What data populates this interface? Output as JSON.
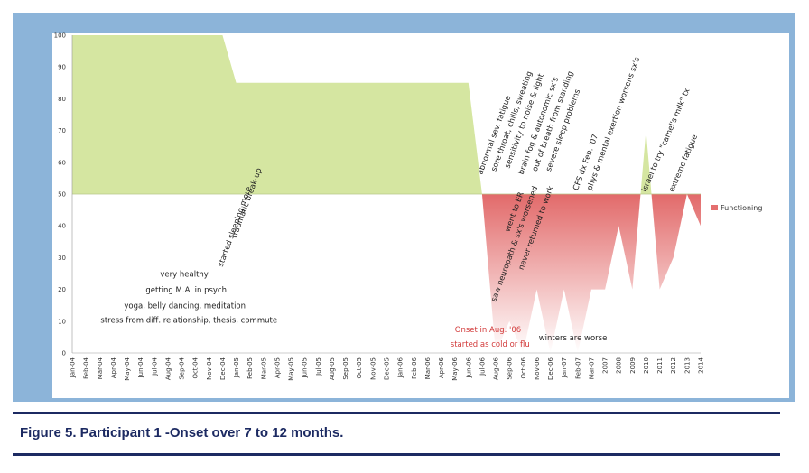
{
  "caption": "Figure 5. Participant 1 -Onset over 7 to 12 months.",
  "colors": {
    "frame": "#8cb4d9",
    "above": "#d5e6a1",
    "below": "#e46f6f",
    "caption": "#1c2a62"
  },
  "chart_data": {
    "type": "area",
    "title": "",
    "xlabel": "",
    "ylabel": "",
    "ylim": [
      0,
      100
    ],
    "baseline": 50,
    "y_ticks": [
      0,
      10,
      20,
      30,
      40,
      50,
      60,
      70,
      80,
      90,
      100
    ],
    "grid": false,
    "legend": {
      "position": "right",
      "entries": [
        "Functioning"
      ]
    },
    "categories": [
      "Jan-04",
      "Feb-04",
      "Mar-04",
      "Apr-04",
      "May-04",
      "Jun-04",
      "Jul-04",
      "Aug-04",
      "Sep-04",
      "Oct-04",
      "Nov-04",
      "Dec-04",
      "Jan-05",
      "Feb-05",
      "Mar-05",
      "Apr-05",
      "May-05",
      "Jun-05",
      "Jul-05",
      "Aug-05",
      "Sep-05",
      "Oct-05",
      "Nov-05",
      "Dec-05",
      "Jan-06",
      "Feb-06",
      "Mar-06",
      "Apr-06",
      "May-06",
      "Jun-06",
      "Jul-06",
      "Aug-06",
      "Sep-06",
      "Oct-06",
      "Nov-06",
      "Dec-06",
      "Jan-07",
      "Feb-07",
      "Mar-07",
      "2007",
      "2008",
      "2009",
      "2010",
      "2011",
      "2012",
      "2013",
      "2014"
    ],
    "series": [
      {
        "name": "Functioning",
        "values": [
          100,
          100,
          100,
          100,
          100,
          100,
          100,
          100,
          100,
          100,
          100,
          100,
          85,
          85,
          85,
          85,
          85,
          85,
          85,
          85,
          85,
          85,
          85,
          85,
          85,
          85,
          85,
          85,
          85,
          85,
          50,
          0,
          10,
          0,
          20,
          0,
          20,
          0,
          20,
          20,
          40,
          20,
          70,
          20,
          30,
          50,
          40
        ]
      }
    ],
    "annotations": [
      {
        "text": "very healthy",
        "x": "Apr-04",
        "y": 24
      },
      {
        "text": "getting M.A. in psych",
        "x": "Apr-04",
        "y": 19
      },
      {
        "text": "yoga, belly dancing, meditation",
        "x": "Apr-04",
        "y": 14
      },
      {
        "text": "stress from diff. relationship, thesis, commute",
        "x": "Apr-04",
        "y": 9.5
      },
      {
        "text": "started sleeping more",
        "x": "Dec-04",
        "y": 27
      },
      {
        "text": "traumatic break-up",
        "x": "Jan-05",
        "y": 36
      },
      {
        "text": "Onset in Aug. '06",
        "x": "Jun-06",
        "y": 6.5
      },
      {
        "text": "started as cold or flu",
        "x": "Jun-06",
        "y": 2
      },
      {
        "text": "saw neuropath & sx's worsened",
        "x": "Aug-06",
        "y": 16
      },
      {
        "text": "went to ER",
        "x": "Sep-06",
        "y": 38
      },
      {
        "text": "never returned to work",
        "x": "Oct-06",
        "y": 26
      },
      {
        "text": "winters are worse",
        "x": "Jan-07",
        "y": 4
      },
      {
        "text": "abnormal sev. fatigue",
        "x": "Jul-06",
        "y": 56
      },
      {
        "text": "sore throat, chills, sweating",
        "x": "Aug-06",
        "y": 57
      },
      {
        "text": "sensitivity to noise & light",
        "x": "Sep-06",
        "y": 58
      },
      {
        "text": "brain fog & autonomic sx's",
        "x": "Oct-06",
        "y": 56
      },
      {
        "text": "out of breath from standing",
        "x": "Nov-06",
        "y": 57
      },
      {
        "text": "severe sleep problems",
        "x": "Dec-06",
        "y": 57
      },
      {
        "text": "CFS dx Feb. '07",
        "x": "Feb-07",
        "y": 51
      },
      {
        "text": "phys & mental exertion worsens sx's",
        "x": "Mar-07",
        "y": 51
      },
      {
        "text": "Israel to try \"camel's milk\" tx",
        "x": "2010",
        "y": 50.5
      },
      {
        "text": "extreme fatigue",
        "x": "2012",
        "y": 50.5
      }
    ]
  }
}
